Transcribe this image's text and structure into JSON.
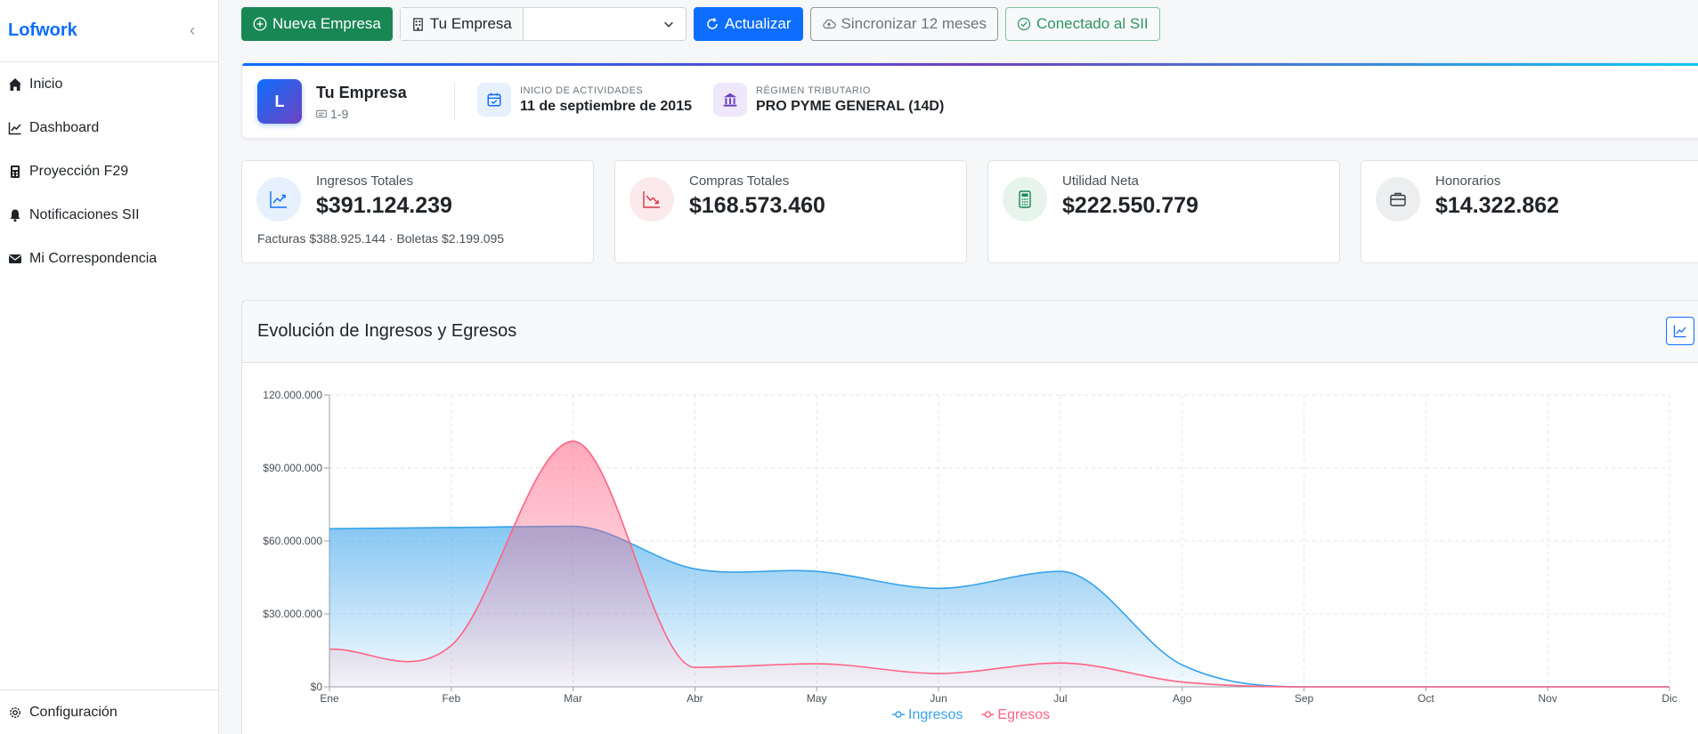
{
  "sidebar": {
    "brand": "Lofwork",
    "items": [
      {
        "label": "Inicio",
        "icon": "home-icon"
      },
      {
        "label": "Dashboard",
        "icon": "chart-line-icon"
      },
      {
        "label": "Proyección F29",
        "icon": "calculator-icon"
      },
      {
        "label": "Notificaciones SII",
        "icon": "bell-icon"
      },
      {
        "label": "Mi Correspondencia",
        "icon": "envelope-icon"
      }
    ],
    "footer": {
      "label": "Configuración",
      "icon": "gear-icon"
    }
  },
  "toolbar": {
    "new_company": "Nueva Empresa",
    "company_label": "Tu Empresa",
    "company_selected": "",
    "update": "Actualizar",
    "sync": "Sincronizar 12 meses",
    "connected": "Conectado al SII"
  },
  "company": {
    "initial": "L",
    "name": "Tu Empresa",
    "rut": "1-9",
    "start_caption": "INICIO DE ACTIVIDADES",
    "start_value": "11 de septiembre de 2015",
    "regime_caption": "RÉGIMEN TRIBUTARIO",
    "regime_value": "PRO PYME GENERAL (14D)"
  },
  "stats": [
    {
      "label": "Ingresos Totales",
      "value": "$391.124.239",
      "detail": "Facturas $388.925.144 · Boletas $2.199.095",
      "icon": "trend-up-icon",
      "color": "#0d6efd",
      "bg": "#e7f0fd"
    },
    {
      "label": "Compras Totales",
      "value": "$168.573.460",
      "detail": "",
      "icon": "trend-down-icon",
      "color": "#dc3545",
      "bg": "#fbe9eb"
    },
    {
      "label": "Utilidad Neta",
      "value": "$222.550.779",
      "detail": "",
      "icon": "calculator-icon",
      "color": "#198754",
      "bg": "#e6f4ec"
    },
    {
      "label": "Honorarios",
      "value": "$14.322.862",
      "detail": "",
      "icon": "briefcase-icon",
      "color": "#495057",
      "bg": "#eceef0"
    }
  ],
  "chart": {
    "title": "Evolución de Ingresos y Egresos"
  },
  "chart_data": {
    "type": "area",
    "categories": [
      "Ene",
      "Feb",
      "Mar",
      "Abr",
      "May",
      "Jun",
      "Jul",
      "Ago",
      "Sep",
      "Oct",
      "Nov",
      "Dic"
    ],
    "series": [
      {
        "name": "Ingresos",
        "color": "#36a2eb",
        "values": [
          65000000,
          65500000,
          66000000,
          48500000,
          47500000,
          40500000,
          47500000,
          9000000,
          0,
          0,
          0,
          0
        ]
      },
      {
        "name": "Egresos",
        "color": "#ff6384",
        "values": [
          15500000,
          17000000,
          101000000,
          8000000,
          9500000,
          5500000,
          9800000,
          2000000,
          0,
          0,
          0,
          0
        ]
      }
    ],
    "yticks": [
      "$0",
      "$30.000.000",
      "$60.000.000",
      "$90.000.000",
      "120.000.000"
    ],
    "ylim": [
      0,
      120000000
    ],
    "grid": true,
    "legend": "bottom"
  }
}
